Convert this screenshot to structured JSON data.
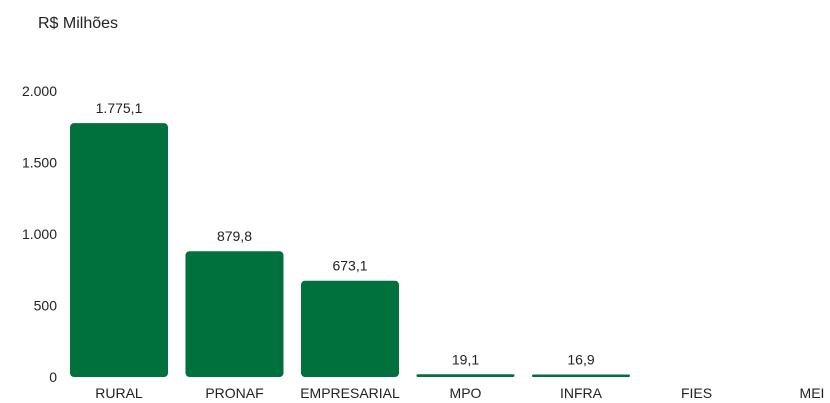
{
  "chart_data": {
    "type": "bar",
    "ylabel": "R$ Milhões",
    "categories": [
      "RURAL",
      "PRONAF",
      "EMPRESARIAL",
      "MPO",
      "INFRA",
      "FIES",
      "MEI"
    ],
    "values": [
      1775.1,
      879.8,
      673.1,
      19.1,
      16.9,
      0,
      0
    ],
    "data_labels": [
      "1.775,1",
      "879,8",
      "673,1",
      "19,1",
      "16,9",
      "",
      ""
    ],
    "ylim": [
      0,
      2000
    ],
    "yticks": [
      0,
      500,
      1000,
      1500,
      2000
    ],
    "ytick_labels": [
      "0",
      "500",
      "1.000",
      "1.500",
      "2.000"
    ],
    "grid": false,
    "bar_color": "#00703C"
  }
}
